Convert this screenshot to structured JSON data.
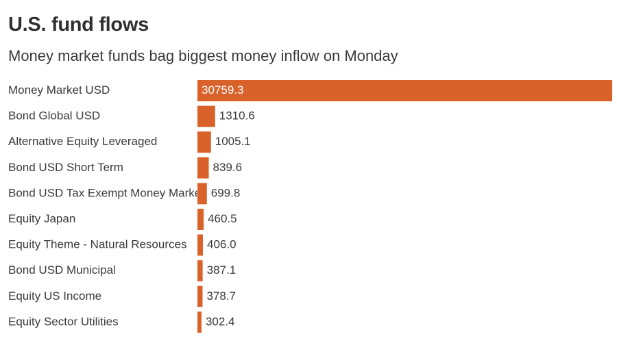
{
  "chart_data": {
    "type": "bar",
    "orientation": "horizontal",
    "title": "U.S. fund flows",
    "subtitle": "Money market funds bag biggest money inflow on Monday",
    "categories": [
      "Money Market USD",
      "Bond Global USD",
      "Alternative Equity Leveraged",
      "Bond USD Short Term",
      "Bond USD Tax Exempt Money Market",
      "Equity Japan",
      "Equity Theme - Natural Resources",
      "Bond USD Municipal",
      "Equity US Income",
      "Equity Sector Utilities"
    ],
    "values": [
      30759.3,
      1310.6,
      1005.1,
      839.6,
      699.8,
      460.5,
      406.0,
      387.1,
      378.7,
      302.4
    ],
    "value_labels": [
      "30759.3",
      "1310.6",
      "1005.1",
      "839.6",
      "699.8",
      "460.5",
      "406.0",
      "387.1",
      "378.7",
      "302.4"
    ],
    "xlim": [
      0,
      30759.3
    ],
    "grid": false,
    "legend": "none",
    "bar_color": "#d9622b"
  }
}
